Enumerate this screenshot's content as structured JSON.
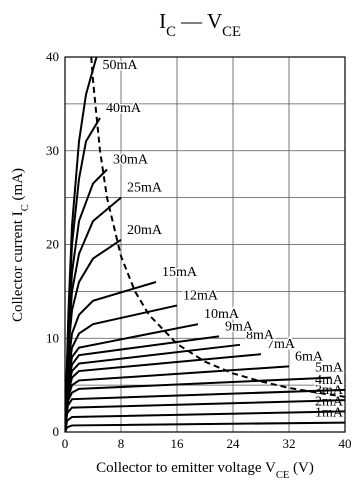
{
  "chart_data": {
    "type": "line",
    "title": [
      {
        "text": "I"
      },
      {
        "text": "C",
        "sub": true
      },
      {
        "text": " — V"
      },
      {
        "text": "CE",
        "sub": true
      }
    ],
    "ylabel": [
      {
        "text": "Collector current   I"
      },
      {
        "text": "C",
        "sub": true
      },
      {
        "text": "  (mA)"
      }
    ],
    "xlabel": [
      {
        "text": "Collector to emitter voltage   V"
      },
      {
        "text": "CE",
        "sub": true
      },
      {
        "text": "  (V)"
      }
    ],
    "xlim": [
      0,
      40
    ],
    "ylim": [
      0,
      40
    ],
    "xticks": [
      0,
      8,
      16,
      24,
      32,
      40
    ],
    "yticks": [
      0,
      10,
      20,
      30,
      40
    ],
    "ygrid": [
      5,
      15,
      25,
      35
    ],
    "grid": true,
    "series": [
      {
        "name": "1mA",
        "color": "#000",
        "x": [
          0,
          0.3,
          1,
          40
        ],
        "values": [
          0,
          0.5,
          0.7,
          1.0
        ]
      },
      {
        "name": "2mA",
        "color": "#000",
        "x": [
          0,
          0.3,
          1,
          40
        ],
        "values": [
          0,
          1.2,
          1.6,
          2.2
        ]
      },
      {
        "name": "3mA",
        "color": "#000",
        "x": [
          0,
          0.3,
          1,
          40
        ],
        "values": [
          0,
          2,
          2.6,
          3.4
        ]
      },
      {
        "name": "4mA",
        "color": "#000",
        "x": [
          0,
          0.4,
          1,
          40
        ],
        "values": [
          0,
          2.8,
          3.5,
          4.5
        ]
      },
      {
        "name": "5mA",
        "color": "#000",
        "x": [
          0,
          0.4,
          1,
          2,
          38
        ],
        "values": [
          0,
          3.3,
          4.2,
          4.6,
          5.8
        ]
      },
      {
        "name": "6mA",
        "color": "#000",
        "x": [
          0,
          0.5,
          1,
          2,
          32
        ],
        "values": [
          0,
          3.8,
          5,
          5.5,
          7
        ]
      },
      {
        "name": "7mA",
        "color": "#000",
        "x": [
          0,
          0.5,
          1,
          2,
          28
        ],
        "values": [
          0,
          4.3,
          5.8,
          6.5,
          8.3
        ]
      },
      {
        "name": "8mA",
        "color": "#000",
        "x": [
          0,
          0.5,
          1,
          2,
          25
        ],
        "values": [
          0,
          4.8,
          6.5,
          7.3,
          9.3
        ]
      },
      {
        "name": "9mA",
        "color": "#000",
        "x": [
          0,
          0.5,
          1,
          2,
          22
        ],
        "values": [
          0,
          5.3,
          7.2,
          8.2,
          10.2
        ]
      },
      {
        "name": "10mA",
        "color": "#000",
        "x": [
          0,
          0.5,
          1,
          2,
          19
        ],
        "values": [
          0,
          5.8,
          8,
          9,
          11.5
        ]
      },
      {
        "name": "12mA",
        "color": "#000",
        "x": [
          0,
          0.5,
          1,
          2,
          4,
          16
        ],
        "values": [
          0,
          6.5,
          9,
          10.5,
          11.5,
          13.5
        ]
      },
      {
        "name": "15mA",
        "color": "#000",
        "x": [
          0,
          0.5,
          1,
          2,
          4,
          13
        ],
        "values": [
          0,
          7.5,
          10.5,
          12.5,
          14,
          16
        ]
      },
      {
        "name": "20mA",
        "color": "#000",
        "x": [
          0,
          0.5,
          1,
          2,
          4,
          8
        ],
        "values": [
          0,
          9,
          13,
          16,
          18.5,
          20.5
        ]
      },
      {
        "name": "25mA",
        "color": "#000",
        "x": [
          0,
          0.5,
          1,
          2,
          4,
          8
        ],
        "values": [
          0,
          10,
          15,
          19,
          22.5,
          25
        ]
      },
      {
        "name": "30mA",
        "color": "#000",
        "x": [
          0,
          0.5,
          1,
          2,
          4,
          6
        ],
        "values": [
          0,
          11,
          17,
          22.5,
          26.5,
          28
        ]
      },
      {
        "name": "40mA",
        "color": "#000",
        "x": [
          0,
          0.5,
          1,
          2,
          3,
          5
        ],
        "values": [
          0,
          12,
          20,
          27,
          31,
          33.5
        ]
      },
      {
        "name": "50mA",
        "color": "#000",
        "x": [
          0,
          0.5,
          1,
          2,
          3,
          4.5
        ],
        "values": [
          0,
          13,
          22,
          31,
          36,
          40
        ]
      }
    ],
    "limit_curve": {
      "color": "#000",
      "dashed": true,
      "x": [
        3.75,
        4,
        5,
        6,
        8,
        10,
        12,
        16,
        20,
        24,
        28,
        32,
        36,
        40
      ],
      "values": [
        40,
        37.5,
        30,
        25,
        18.75,
        15,
        12.5,
        9.4,
        7.5,
        6.25,
        5.4,
        4.7,
        4.2,
        3.75
      ]
    }
  }
}
